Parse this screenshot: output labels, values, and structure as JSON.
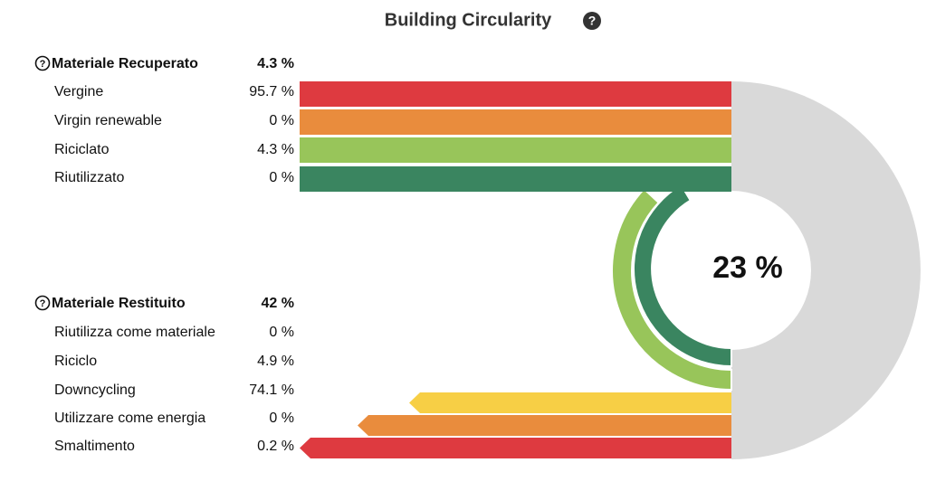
{
  "title": "Building Circularity",
  "center_value": "23 %",
  "recovered": {
    "label": "Materiale Recuperato",
    "value": "4.3 %",
    "rows": [
      {
        "label": "Vergine",
        "value": "95.7 %"
      },
      {
        "label": "Virgin renewable",
        "value": "0 %"
      },
      {
        "label": "Riciclato",
        "value": "4.3 %"
      },
      {
        "label": "Riutilizzato",
        "value": "0 %"
      }
    ]
  },
  "returned": {
    "label": "Materiale Restituito",
    "value": "42 %",
    "rows": [
      {
        "label": "Riutilizza come materiale",
        "value": "0 %"
      },
      {
        "label": "Riciclo",
        "value": "4.9 %"
      },
      {
        "label": "Downcycling",
        "value": "74.1 %"
      },
      {
        "label": "Utilizzare come energia",
        "value": "0 %"
      },
      {
        "label": "Smaltimento",
        "value": "0.2 %"
      }
    ]
  }
}
